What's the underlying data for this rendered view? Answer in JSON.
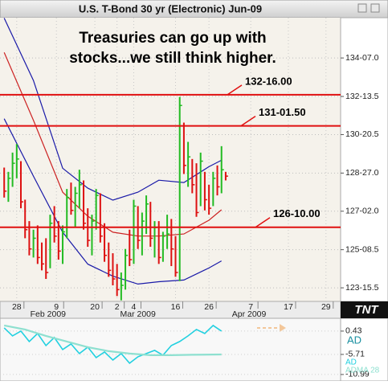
{
  "chart_data": {
    "type": "ohlc",
    "title": "U.S. T-Bond 30 yr (Electronic) Jun-09",
    "annotation": [
      "Treasuries can go up with",
      "stocks...we still think higher."
    ],
    "logo": "TNT",
    "x": [
      1,
      2,
      3,
      4,
      5,
      6,
      7,
      8,
      9,
      10,
      11,
      12,
      13,
      14,
      15,
      16,
      17,
      18,
      19,
      20,
      21,
      22,
      23,
      24,
      25,
      26,
      27,
      28,
      29,
      30,
      31,
      32,
      33,
      34,
      35,
      36,
      37,
      38,
      39,
      40,
      41,
      42,
      43,
      44,
      45,
      46,
      47,
      48,
      49,
      50,
      51,
      52,
      53,
      54
    ],
    "high": [
      129.1,
      128.9,
      129.8,
      130.2,
      129.4,
      127.6,
      126.6,
      126.2,
      126.4,
      125.6,
      125.8,
      126.9,
      127.3,
      126.6,
      126.4,
      128.1,
      128.4,
      128.2,
      129.0,
      128.5,
      127.2,
      126.9,
      128.1,
      127.9,
      126.5,
      125.6,
      125.1,
      124.6,
      124.2,
      125.3,
      126.2,
      127.6,
      127.3,
      127.0,
      127.8,
      127.5,
      126.6,
      126.6,
      126.1,
      126.9,
      126.7,
      125.9,
      132.4,
      131.2,
      130.3,
      129.5,
      129.3,
      129.8,
      128.9,
      128.3,
      128.9,
      129.2,
      130.1,
      128.9
    ],
    "low": [
      127.7,
      127.5,
      128.2,
      128.6,
      127.2,
      125.8,
      125.0,
      124.9,
      124.6,
      124.3,
      123.9,
      124.4,
      125.6,
      124.8,
      124.6,
      125.8,
      126.9,
      126.3,
      127.2,
      126.2,
      125.4,
      125.0,
      126.2,
      125.6,
      124.7,
      124.0,
      123.6,
      123.1,
      122.9,
      123.4,
      124.5,
      124.6,
      125.3,
      125.0,
      126.0,
      125.4,
      124.9,
      124.6,
      124.7,
      125.3,
      124.5,
      124.0,
      123.8,
      128.8,
      128.2,
      127.9,
      126.8,
      127.3,
      127.1,
      126.9,
      127.3,
      127.8,
      127.9,
      128.5
    ],
    "close": [
      128.0,
      128.6,
      129.3,
      129.5,
      127.5,
      126.2,
      125.3,
      125.8,
      124.9,
      124.6,
      124.2,
      126.5,
      125.9,
      125.2,
      126.1,
      127.7,
      127.1,
      127.9,
      128.3,
      126.5,
      125.7,
      126.6,
      127.8,
      125.9,
      125.0,
      124.3,
      123.9,
      123.4,
      123.6,
      125.0,
      124.8,
      127.3,
      125.7,
      126.6,
      127.4,
      125.8,
      126.3,
      124.9,
      125.9,
      126.0,
      125.3,
      124.2,
      132.0,
      129.2,
      129.6,
      128.3,
      127.0,
      129.4,
      127.6,
      127.2,
      128.6,
      128.2,
      129.0,
      128.7
    ],
    "up_color": "#22bb22",
    "down_color": "#dd1111",
    "lines": [
      {
        "color": "#1a1aa8",
        "x": [
          1,
          8,
          15,
          21,
          27,
          33,
          38,
          44,
          50,
          53
        ],
        "values": [
          136.08,
          133.17,
          129.07,
          128.14,
          127.58,
          127.95,
          128.51,
          128.4,
          129.14,
          129.44
        ]
      },
      {
        "color": "#cc2222",
        "x": [
          1,
          8,
          15,
          21,
          27,
          33,
          38,
          44,
          50,
          53
        ],
        "values": [
          134.48,
          131.31,
          127.95,
          126.83,
          126.08,
          125.9,
          125.9,
          126.0,
          126.64,
          127.13
        ]
      },
      {
        "color": "#1a1aa8",
        "x": [
          1,
          8,
          15,
          21,
          27,
          33,
          38,
          44,
          50,
          53
        ],
        "values": [
          131.38,
          128.7,
          126.08,
          124.59,
          124.03,
          123.66,
          123.77,
          123.85,
          124.41,
          124.74
        ]
      }
    ],
    "levels": [
      {
        "value": 132.5,
        "label": "132-16.00"
      },
      {
        "value": 131.046875,
        "label": "131-01.50"
      },
      {
        "value": 126.3125,
        "label": "126-10.00"
      }
    ],
    "level_color": "#e01010",
    "ylim": [
      122.85,
      136.1
    ],
    "yticks": [
      {
        "value": 134.21875,
        "label": "134-07.0"
      },
      {
        "value": 132.421875,
        "label": "132-13.5"
      },
      {
        "value": 130.640625,
        "label": "130-20.5"
      },
      {
        "value": 128.84375,
        "label": "128-27.0"
      },
      {
        "value": 127.0625,
        "label": "127-02.0"
      },
      {
        "value": 125.265625,
        "label": "125-08.5"
      },
      {
        "value": 123.484375,
        "label": "123-15.5"
      }
    ],
    "xlim": [
      0,
      81.5
    ],
    "xticks": [
      {
        "value": 4,
        "label": "28"
      },
      {
        "value": 13.5,
        "label": "9"
      },
      {
        "value": 22.7,
        "label": "20"
      },
      {
        "value": 28,
        "label": "2"
      },
      {
        "value": 32,
        "label": "4"
      },
      {
        "value": 42,
        "label": "16"
      },
      {
        "value": 50,
        "label": "26"
      },
      {
        "value": 60,
        "label": "7"
      },
      {
        "value": 69,
        "label": "17"
      },
      {
        "value": 78,
        "label": "29"
      }
    ],
    "month_labels": [
      {
        "value": 11.5,
        "label": "Feb 2009"
      },
      {
        "value": 33,
        "label": "Mar 2009"
      },
      {
        "value": 59.6,
        "label": "Apr 2009"
      }
    ],
    "grid": true,
    "indicator": {
      "title": "AD",
      "ylim": [
        -12.7,
        3.8
      ],
      "yticks": [
        0.43,
        -5.71,
        -10.99
      ],
      "series": [
        {
          "name": "AD",
          "color": "#22d0e0",
          "x": [
            1,
            3,
            5,
            7,
            9,
            11,
            13,
            15,
            17,
            19,
            21,
            23,
            25,
            27,
            29,
            31,
            33,
            35,
            37,
            39,
            41,
            43,
            45,
            47,
            49,
            51,
            53
          ],
          "values": [
            1.28,
            -0.84,
            0.43,
            -2.32,
            -0.2,
            -3.38,
            -1.26,
            -4.43,
            -2.95,
            -5.49,
            -3.8,
            -6.55,
            -5.07,
            -7.18,
            -5.49,
            -8.03,
            -6.34,
            -5.49,
            -4.64,
            -5.91,
            -3.38,
            -2.32,
            -0.84,
            0.85,
            -0.2,
            1.91,
            0.43
          ]
        },
        {
          "name": "ADMA 28",
          "color": "#8ee0d0",
          "x": [
            1,
            6,
            11,
            16,
            21,
            26,
            31,
            36,
            41,
            46,
            53
          ],
          "values": [
            1.91,
            0.85,
            -0.84,
            -2.32,
            -3.8,
            -4.85,
            -5.49,
            -5.91,
            -5.91,
            -5.8,
            -5.71
          ]
        }
      ]
    }
  }
}
